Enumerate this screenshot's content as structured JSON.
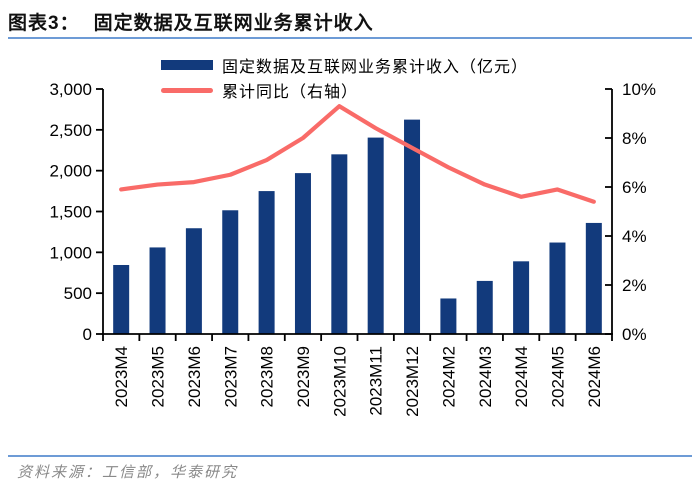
{
  "header": {
    "title_prefix": "图表3：",
    "title": "固定数据及互联网业务累计收入"
  },
  "footer": {
    "source": "资料来源：工信部，华泰研究"
  },
  "colors": {
    "bar": "#123a7c",
    "line": "#f96b68",
    "rule": "#6d9bd6",
    "axis": "#000000",
    "source_text": "#8a8a8a",
    "title_text": "#111111"
  },
  "chart_data": {
    "type": "combo",
    "title": "固定数据及互联网业务累计收入",
    "categories": [
      "2023M4",
      "2023M5",
      "2023M6",
      "2023M7",
      "2023M8",
      "2023M9",
      "2023M10",
      "2023M11",
      "2023M12",
      "2024M2",
      "2024M3",
      "2024M4",
      "2024M5",
      "2024M6"
    ],
    "series": [
      {
        "name": "固定数据及互联网业务累计收入（亿元）",
        "type": "bar",
        "axis": "left",
        "color": "#123a7c",
        "values": [
          845,
          1060,
          1295,
          1515,
          1750,
          1970,
          2200,
          2405,
          2625,
          435,
          650,
          890,
          1120,
          1360
        ]
      },
      {
        "name": "累计同比（右轴）",
        "type": "line",
        "axis": "right",
        "color": "#f96b68",
        "values": [
          5.9,
          6.1,
          6.2,
          6.5,
          7.1,
          8.0,
          9.3,
          8.4,
          7.6,
          6.8,
          6.1,
          5.6,
          5.9,
          5.4
        ]
      }
    ],
    "left_axis": {
      "min": 0,
      "max": 3000,
      "step": 500,
      "tick_labels": [
        "0",
        "500",
        "1,000",
        "1,500",
        "2,000",
        "2,500",
        "3,000"
      ]
    },
    "right_axis": {
      "min": 0,
      "max": 10,
      "step": 2,
      "suffix": "%",
      "tick_labels": [
        "0%",
        "2%",
        "4%",
        "6%",
        "8%",
        "10%"
      ]
    },
    "legend_position": "top",
    "grid": false
  }
}
